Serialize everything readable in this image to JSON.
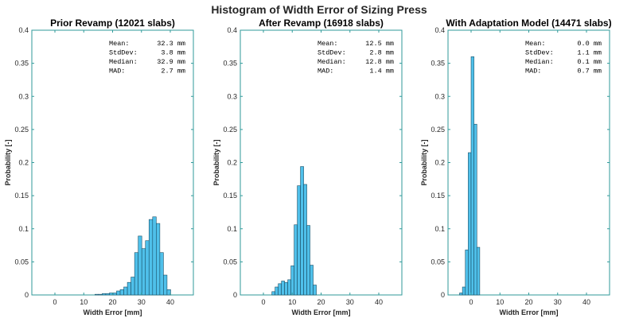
{
  "figure": {
    "title": "Histogram of Width Error of Sizing Press",
    "colors": {
      "bar_fill": "#4fc0ea",
      "bar_edge": "#1a4f66",
      "axes": "#2f9a9a"
    }
  },
  "chart_data": [
    {
      "type": "bar",
      "title": "Prior Revamp (12021 slabs)",
      "xlabel": "Width Error [mm]",
      "ylabel": "Probability [-]",
      "xlim": [
        -8,
        48
      ],
      "ylim": [
        0,
        0.4
      ],
      "xticks": [
        "0",
        "10",
        "20",
        "30",
        "40"
      ],
      "yticks": [
        "0",
        "0.05",
        "0.1",
        "0.15",
        "0.2",
        "0.25",
        "0.3",
        "0.35",
        "0.4"
      ],
      "bin_width": 1.25,
      "bin_centers": [
        14.5,
        15.75,
        17,
        18.25,
        19.5,
        20.75,
        22,
        23.25,
        24.5,
        25.75,
        27,
        28.25,
        29.5,
        30.75,
        32,
        33.25,
        34.5,
        35.75,
        37,
        38.25,
        39.5
      ],
      "values": [
        0.001,
        0.001,
        0.002,
        0.002,
        0.003,
        0.003,
        0.006,
        0.008,
        0.012,
        0.019,
        0.027,
        0.064,
        0.089,
        0.07,
        0.082,
        0.114,
        0.118,
        0.108,
        0.064,
        0.03,
        0.008
      ],
      "stats": [
        {
          "label": "Mean:",
          "value": "32.3 mm"
        },
        {
          "label": "StdDev:",
          "value": "3.8 mm"
        },
        {
          "label": "Median:",
          "value": "32.9 mm"
        },
        {
          "label": "MAD:",
          "value": "2.7 mm"
        }
      ]
    },
    {
      "type": "bar",
      "title": "After Revamp (16918 slabs)",
      "xlabel": "Width Error [mm]",
      "ylabel": "Probability [-]",
      "xlim": [
        -8,
        48
      ],
      "ylim": [
        0,
        0.4
      ],
      "xticks": [
        "0",
        "10",
        "20",
        "30",
        "40"
      ],
      "yticks": [
        "0",
        "0.05",
        "0.1",
        "0.15",
        "0.2",
        "0.25",
        "0.3",
        "0.35",
        "0.4"
      ],
      "bin_width": 1.1,
      "bin_centers": [
        3.5,
        4.6,
        5.7,
        6.8,
        7.9,
        9.0,
        10.1,
        11.2,
        12.3,
        13.4,
        14.5,
        15.6,
        16.7,
        17.8
      ],
      "values": [
        0.005,
        0.012,
        0.017,
        0.021,
        0.019,
        0.023,
        0.044,
        0.106,
        0.165,
        0.194,
        0.167,
        0.105,
        0.045,
        0.015
      ],
      "stats": [
        {
          "label": "Mean:",
          "value": "12.5 mm"
        },
        {
          "label": "StdDev:",
          "value": "2.8 mm"
        },
        {
          "label": "Median:",
          "value": "12.8 mm"
        },
        {
          "label": "MAD:",
          "value": "1.4 mm"
        }
      ]
    },
    {
      "type": "bar",
      "title": "With Adaptation Model (14471 slabs)",
      "xlabel": "Width Error [mm]",
      "ylabel": "Probability [-]",
      "xlim": [
        -8,
        48
      ],
      "ylim": [
        0,
        0.4
      ],
      "xticks": [
        "0",
        "10",
        "20",
        "30",
        "40"
      ],
      "yticks": [
        "0",
        "0.05",
        "0.1",
        "0.15",
        "0.2",
        "0.25",
        "0.3",
        "0.35",
        "0.4"
      ],
      "bin_width": 1.0,
      "bin_centers": [
        -3.5,
        -2.5,
        -1.5,
        -0.5,
        0.5,
        1.5,
        2.5
      ],
      "values": [
        0.003,
        0.012,
        0.068,
        0.215,
        0.36,
        0.258,
        0.072
      ],
      "stats": [
        {
          "label": "Mean:",
          "value": "0.0 mm"
        },
        {
          "label": "StdDev:",
          "value": "1.1 mm"
        },
        {
          "label": "Median:",
          "value": "0.1 mm"
        },
        {
          "label": "MAD:",
          "value": "0.7 mm"
        }
      ]
    }
  ]
}
